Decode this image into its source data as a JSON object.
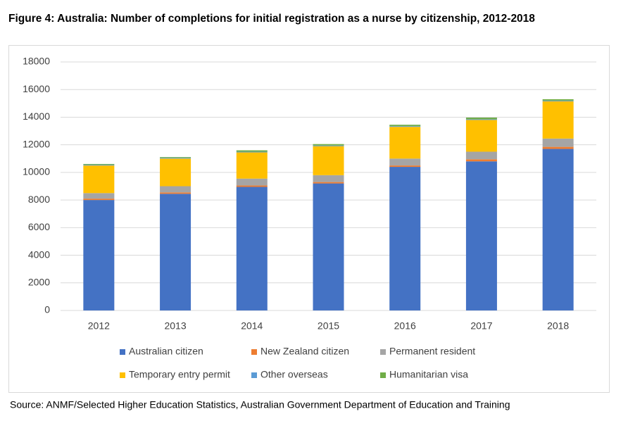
{
  "chart_data": {
    "type": "stacked_bar",
    "title": "Figure 4: Australia: Number of completions for initial registration as a nurse by citizenship, 2012-2018",
    "source": "Source: ANMF/Selected Higher Education Statistics, Australian Government Department of Education and Training",
    "categories": [
      "2012",
      "2013",
      "2014",
      "2015",
      "2016",
      "2017",
      "2018"
    ],
    "series": [
      {
        "name": "Australian citizen",
        "color": "#4472c4",
        "values": [
          8000,
          8450,
          8950,
          9200,
          10400,
          10800,
          11700
        ]
      },
      {
        "name": "New Zealand citizen",
        "color": "#ed7d31",
        "values": [
          100,
          100,
          100,
          100,
          100,
          150,
          150
        ]
      },
      {
        "name": "Permanent resident",
        "color": "#a5a5a5",
        "values": [
          400,
          450,
          500,
          500,
          500,
          550,
          600
        ]
      },
      {
        "name": "Temporary entry permit",
        "color": "#ffc000",
        "values": [
          2000,
          2000,
          1900,
          2100,
          2300,
          2300,
          2700
        ]
      },
      {
        "name": "Other overseas",
        "color": "#5b9bd5",
        "values": [
          50,
          50,
          50,
          50,
          50,
          50,
          50
        ]
      },
      {
        "name": "Humanitarian visa",
        "color": "#70ad47",
        "values": [
          60,
          60,
          100,
          100,
          100,
          120,
          100
        ]
      }
    ],
    "ylim": [
      0,
      18000
    ],
    "yticks": [
      0,
      2000,
      4000,
      6000,
      8000,
      10000,
      12000,
      14000,
      16000,
      18000
    ],
    "grid": true
  }
}
